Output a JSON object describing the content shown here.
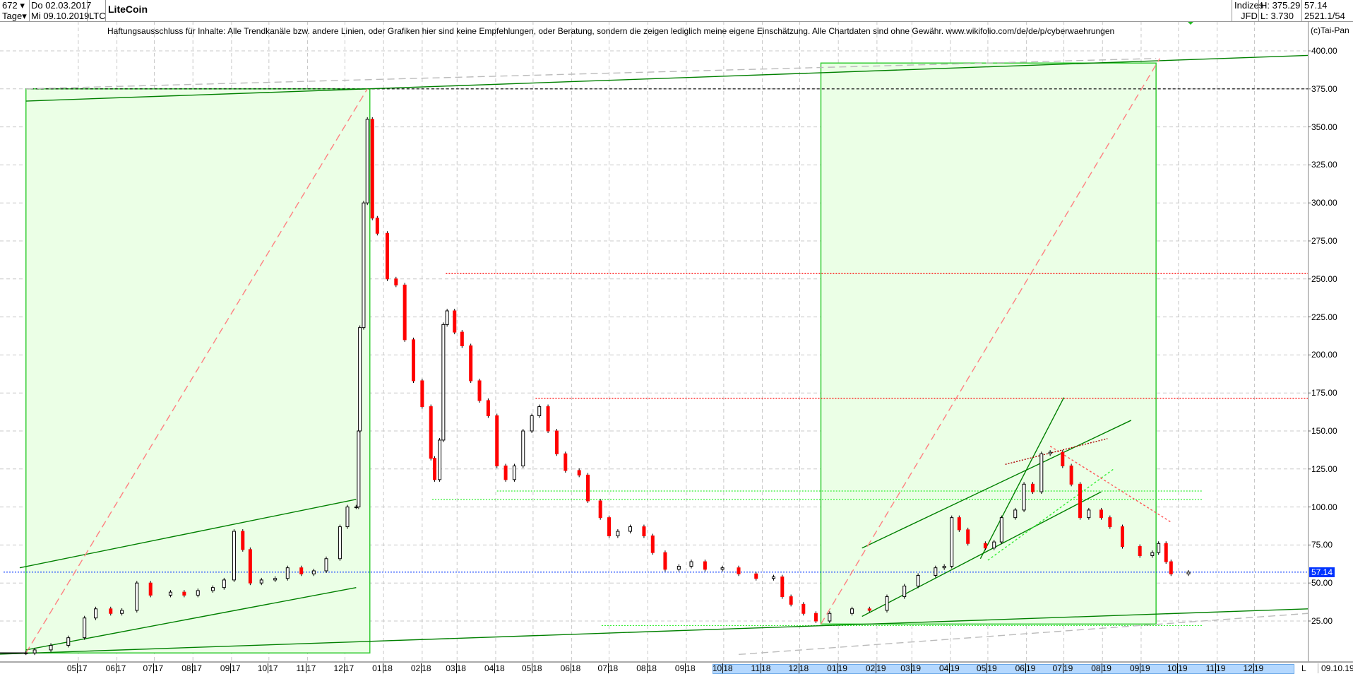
{
  "header": {
    "bar_count": "672",
    "period": "Tage",
    "start_date": "Do 02.03.2017",
    "end_date": "Mi 09.10.2019",
    "symbol": "LTC",
    "title": "LiteCoin",
    "category": "Indizes",
    "source": "JFD",
    "high": "H: 375.29",
    "low": "L: 3.730",
    "last": "57.14",
    "extra": "2521.1/54",
    "copyright": "(c)Tai-Pan"
  },
  "disclaimer": "Haftungsausschluss für Inhalte: Alle Trendkanäle bzw. andere Linien, oder Grafiken hier sind keine Empfehlungen, oder Beratung, sondern die zeigen lediglich meine eigene Einschätzung. Alle Chartdaten sind ohne Gewähr.  www.wikifolio.com/de/de/p/cyberwaehrungen",
  "chart_data": {
    "type": "candlestick",
    "title": "LiteCoin",
    "ylim": [
      0,
      400
    ],
    "xlim": [
      "2017-03-02",
      "2020-01-13"
    ],
    "grid": true,
    "last_value": 57.14,
    "last_value_label": "57.14",
    "last_date_label": "09.10.19",
    "scale_label": "L",
    "colors": {
      "up": "#ffffff",
      "down": "#ff0000",
      "outline": "#000000",
      "box_fill": "#ebffe6",
      "box_border": "#33cc33",
      "trend": "#008000",
      "last_line": "#0033ff"
    },
    "y_ticks": [
      "400.00",
      "375.00",
      "350.00",
      "325.00",
      "300.00",
      "275.00",
      "250.00",
      "225.00",
      "200.00",
      "175.00",
      "150.00",
      "125.00",
      "100.00",
      "75.00",
      "50.00",
      "25.00"
    ],
    "x_ticks": [
      {
        "date": "2017-05-01",
        "m": "05",
        "y": "17"
      },
      {
        "date": "2017-06-01",
        "m": "06",
        "y": "17"
      },
      {
        "date": "2017-07-01",
        "m": "07",
        "y": "17"
      },
      {
        "date": "2017-08-01",
        "m": "08",
        "y": "17"
      },
      {
        "date": "2017-09-01",
        "m": "09",
        "y": "17"
      },
      {
        "date": "2017-10-01",
        "m": "10",
        "y": "17"
      },
      {
        "date": "2017-11-01",
        "m": "11",
        "y": "17"
      },
      {
        "date": "2017-12-01",
        "m": "12",
        "y": "17"
      },
      {
        "date": "2018-01-01",
        "m": "01",
        "y": "18"
      },
      {
        "date": "2018-02-01",
        "m": "02",
        "y": "18"
      },
      {
        "date": "2018-03-01",
        "m": "03",
        "y": "18"
      },
      {
        "date": "2018-04-01",
        "m": "04",
        "y": "18"
      },
      {
        "date": "2018-05-01",
        "m": "05",
        "y": "18"
      },
      {
        "date": "2018-06-01",
        "m": "06",
        "y": "18"
      },
      {
        "date": "2018-07-01",
        "m": "07",
        "y": "18"
      },
      {
        "date": "2018-08-01",
        "m": "08",
        "y": "18"
      },
      {
        "date": "2018-09-01",
        "m": "09",
        "y": "18"
      },
      {
        "date": "2018-10-01",
        "m": "10",
        "y": "18"
      },
      {
        "date": "2018-11-01",
        "m": "11",
        "y": "18"
      },
      {
        "date": "2018-12-01",
        "m": "12",
        "y": "18"
      },
      {
        "date": "2019-01-01",
        "m": "01",
        "y": "19"
      },
      {
        "date": "2019-02-01",
        "m": "02",
        "y": "19"
      },
      {
        "date": "2019-03-01",
        "m": "03",
        "y": "19"
      },
      {
        "date": "2019-04-01",
        "m": "04",
        "y": "19"
      },
      {
        "date": "2019-05-01",
        "m": "05",
        "y": "19"
      },
      {
        "date": "2019-06-01",
        "m": "06",
        "y": "19"
      },
      {
        "date": "2019-07-01",
        "m": "07",
        "y": "19"
      },
      {
        "date": "2019-08-01",
        "m": "08",
        "y": "19"
      },
      {
        "date": "2019-09-01",
        "m": "09",
        "y": "19"
      },
      {
        "date": "2019-10-01",
        "m": "10",
        "y": "19"
      },
      {
        "date": "2019-11-01",
        "m": "11",
        "y": "19"
      },
      {
        "date": "2019-12-01",
        "m": "12",
        "y": "19"
      }
    ],
    "highlight_range": [
      "2018-10-01",
      "2020-01-01"
    ],
    "series": [
      [
        "2017-03-02",
        4.0
      ],
      [
        "2017-03-20",
        4.0
      ],
      [
        "2017-03-27",
        6
      ],
      [
        "2017-04-09",
        9
      ],
      [
        "2017-04-23",
        14
      ],
      [
        "2017-05-06",
        27
      ],
      [
        "2017-05-15",
        33
      ],
      [
        "2017-05-27",
        30
      ],
      [
        "2017-06-05",
        32
      ],
      [
        "2017-06-17",
        50
      ],
      [
        "2017-06-28",
        42
      ],
      [
        "2017-07-14",
        44
      ],
      [
        "2017-07-25",
        42
      ],
      [
        "2017-08-05",
        45
      ],
      [
        "2017-08-17",
        47
      ],
      [
        "2017-08-26",
        52
      ],
      [
        "2017-09-03",
        84
      ],
      [
        "2017-09-10",
        72
      ],
      [
        "2017-09-16",
        50
      ],
      [
        "2017-09-25",
        52
      ],
      [
        "2017-10-06",
        53
      ],
      [
        "2017-10-16",
        60
      ],
      [
        "2017-10-27",
        56
      ],
      [
        "2017-11-06",
        58
      ],
      [
        "2017-11-16",
        66
      ],
      [
        "2017-11-27",
        87
      ],
      [
        "2017-12-03",
        100
      ],
      [
        "2017-12-10",
        100
      ],
      [
        "2017-12-12",
        150
      ],
      [
        "2017-12-13",
        218
      ],
      [
        "2017-12-16",
        300
      ],
      [
        "2017-12-19",
        355
      ],
      [
        "2017-12-23",
        290
      ],
      [
        "2017-12-27",
        280
      ],
      [
        "2018-01-04",
        250
      ],
      [
        "2018-01-11",
        246
      ],
      [
        "2018-01-18",
        210
      ],
      [
        "2018-01-25",
        183
      ],
      [
        "2018-02-01",
        166
      ],
      [
        "2018-02-08",
        132
      ],
      [
        "2018-02-11",
        118
      ],
      [
        "2018-02-15",
        144
      ],
      [
        "2018-02-18",
        220
      ],
      [
        "2018-02-21",
        229
      ],
      [
        "2018-02-27",
        215
      ],
      [
        "2018-03-05",
        206
      ],
      [
        "2018-03-12",
        183
      ],
      [
        "2018-03-19",
        170
      ],
      [
        "2018-03-26",
        160
      ],
      [
        "2018-04-02",
        127
      ],
      [
        "2018-04-09",
        118
      ],
      [
        "2018-04-16",
        127
      ],
      [
        "2018-04-23",
        150
      ],
      [
        "2018-04-30",
        160
      ],
      [
        "2018-05-06",
        166
      ],
      [
        "2018-05-13",
        150
      ],
      [
        "2018-05-20",
        135
      ],
      [
        "2018-05-27",
        124
      ],
      [
        "2018-06-07",
        121
      ],
      [
        "2018-06-14",
        104
      ],
      [
        "2018-06-24",
        93
      ],
      [
        "2018-07-01",
        81
      ],
      [
        "2018-07-08",
        84
      ],
      [
        "2018-07-18",
        87
      ],
      [
        "2018-07-29",
        81
      ],
      [
        "2018-08-05",
        70
      ],
      [
        "2018-08-15",
        59
      ],
      [
        "2018-08-26",
        61
      ],
      [
        "2018-09-05",
        64
      ],
      [
        "2018-09-16",
        59
      ],
      [
        "2018-09-30",
        60
      ],
      [
        "2018-10-13",
        56
      ],
      [
        "2018-10-27",
        53
      ],
      [
        "2018-11-10",
        54
      ],
      [
        "2018-11-17",
        41
      ],
      [
        "2018-11-24",
        36
      ],
      [
        "2018-12-04",
        30
      ],
      [
        "2018-12-14",
        25
      ],
      [
        "2018-12-25",
        30
      ],
      [
        "2019-01-12",
        33
      ],
      [
        "2019-01-26",
        32
      ],
      [
        "2019-02-09",
        41
      ],
      [
        "2019-02-23",
        48
      ],
      [
        "2019-03-06",
        55
      ],
      [
        "2019-03-20",
        60
      ],
      [
        "2019-03-27",
        61
      ],
      [
        "2019-04-02",
        93
      ],
      [
        "2019-04-08",
        85
      ],
      [
        "2019-04-15",
        76
      ],
      [
        "2019-04-29",
        73
      ],
      [
        "2019-05-06",
        77
      ],
      [
        "2019-05-12",
        93
      ],
      [
        "2019-05-23",
        98
      ],
      [
        "2019-05-30",
        115
      ],
      [
        "2019-06-06",
        110
      ],
      [
        "2019-06-13",
        135
      ],
      [
        "2019-06-20",
        136
      ],
      [
        "2019-06-30",
        127
      ],
      [
        "2019-07-07",
        115
      ],
      [
        "2019-07-14",
        93
      ],
      [
        "2019-07-21",
        98
      ],
      [
        "2019-07-31",
        93
      ],
      [
        "2019-08-07",
        87
      ],
      [
        "2019-08-17",
        74
      ],
      [
        "2019-08-31",
        68
      ],
      [
        "2019-09-10",
        70
      ],
      [
        "2019-09-15",
        76
      ],
      [
        "2019-09-21",
        64
      ],
      [
        "2019-09-25",
        56
      ],
      [
        "2019-10-09",
        57.14
      ]
    ],
    "boxes": [
      {
        "from": "2017-03-20",
        "to": "2017-12-21",
        "low": 4,
        "high": 375
      },
      {
        "from": "2018-12-18",
        "to": "2019-09-13",
        "low": 23,
        "high": 392
      }
    ],
    "hlines": [
      {
        "price": 375,
        "from": "2017-03-20",
        "to": "2020-01-13",
        "color": "#000000",
        "dash": "4,3"
      },
      {
        "price": 253.5,
        "from": "2018-02-20",
        "to": "2020-01-13",
        "color": "#ff0000",
        "dash": "2,2"
      },
      {
        "price": 171.5,
        "from": "2018-05-03",
        "to": "2020-01-13",
        "color": "#ff0000",
        "dash": "2,2"
      },
      {
        "price": 110.5,
        "from": "2018-04-02",
        "to": "2019-10-20",
        "color": "#33ee33",
        "dash": "2,2"
      },
      {
        "price": 105,
        "from": "2018-02-09",
        "to": "2019-10-20",
        "color": "#33ee33",
        "dash": "2,2"
      },
      {
        "price": 22,
        "from": "2018-06-25",
        "to": "2019-10-20",
        "color": "#33ee33",
        "dash": "2,2"
      },
      {
        "price": 57.14,
        "from": "2017-03-02",
        "to": "2020-01-13",
        "color": "#0033ff",
        "dash": "2,2"
      }
    ],
    "trendlines": [
      {
        "p": [
          [
            "2017-02-20",
            3
          ],
          [
            "2020-01-13",
            33
          ]
        ],
        "color": "#008000",
        "dash": ""
      },
      {
        "p": [
          [
            "2017-03-20",
            367
          ],
          [
            "2020-01-13",
            397
          ]
        ],
        "color": "#008000",
        "dash": ""
      },
      {
        "p": [
          [
            "2017-03-15",
            60
          ],
          [
            "2017-12-10",
            105
          ]
        ],
        "color": "#008000",
        "dash": ""
      },
      {
        "p": [
          [
            "2017-03-20",
            6
          ],
          [
            "2017-12-10",
            47
          ]
        ],
        "color": "#008000",
        "dash": ""
      },
      {
        "p": [
          [
            "2019-01-20",
            73
          ],
          [
            "2019-08-24",
            157
          ]
        ],
        "color": "#008000",
        "dash": ""
      },
      {
        "p": [
          [
            "2019-01-20",
            28
          ],
          [
            "2019-07-31",
            110
          ]
        ],
        "color": "#008000",
        "dash": ""
      },
      {
        "p": [
          [
            "2019-04-25",
            66
          ],
          [
            "2019-07-01",
            172
          ]
        ],
        "color": "#008000",
        "dash": ""
      },
      {
        "p": [
          [
            "2019-05-01",
            65
          ],
          [
            "2019-08-10",
            125
          ]
        ],
        "color": "#33ee33",
        "dash": "3,3"
      },
      {
        "p": [
          [
            "2019-06-20",
            140
          ],
          [
            "2019-09-25",
            90
          ]
        ],
        "color": "#ff5555",
        "dash": "3,3"
      },
      {
        "p": [
          [
            "2019-05-15",
            128
          ],
          [
            "2019-08-05",
            145
          ]
        ],
        "color": "#aa0000",
        "dash": "2,2"
      },
      {
        "p": [
          [
            "2017-03-20",
            4
          ],
          [
            "2017-12-19",
            375
          ]
        ],
        "color": "#ff8080",
        "dash": "10,6"
      },
      {
        "p": [
          [
            "2018-12-18",
            23
          ],
          [
            "2019-09-16",
            395
          ]
        ],
        "color": "#ff8080",
        "dash": "10,6"
      },
      {
        "p": [
          [
            "2017-03-20",
            375
          ],
          [
            "2019-09-13",
            395
          ]
        ],
        "color": "#bbbbbb",
        "dash": "10,6"
      },
      {
        "p": [
          [
            "2018-10-13",
            3
          ],
          [
            "2020-01-13",
            30
          ]
        ],
        "color": "#bbbbbb",
        "dash": "10,6"
      }
    ]
  }
}
